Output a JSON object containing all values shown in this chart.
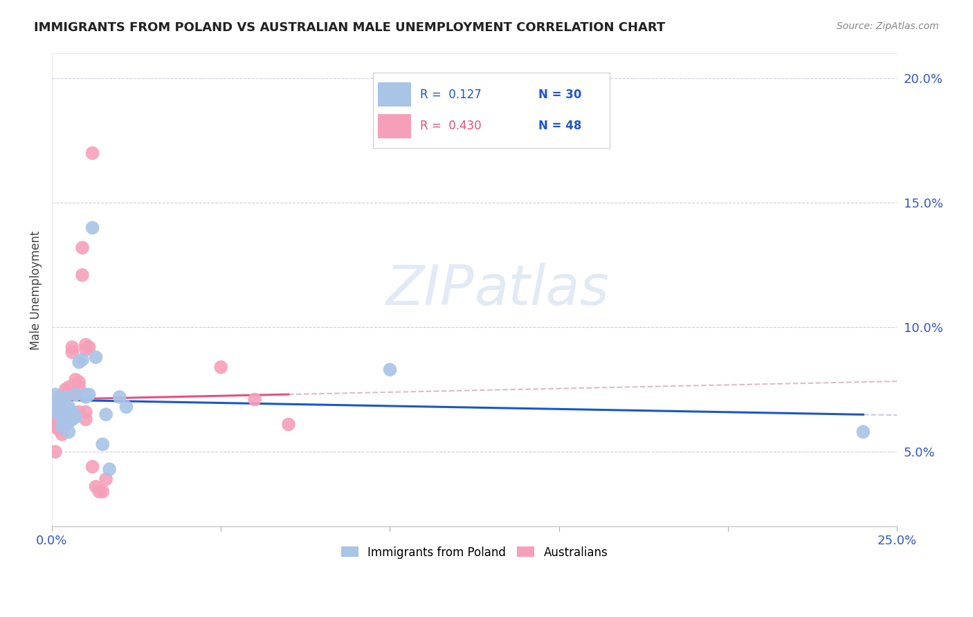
{
  "title": "IMMIGRANTS FROM POLAND VS AUSTRALIAN MALE UNEMPLOYMENT CORRELATION CHART",
  "source": "Source: ZipAtlas.com",
  "ylabel": "Male Unemployment",
  "right_yticks": [
    0.05,
    0.1,
    0.15,
    0.2
  ],
  "right_yticklabels": [
    "5.0%",
    "10.0%",
    "15.0%",
    "20.0%"
  ],
  "poland_color": "#a8c4e6",
  "australia_color": "#f5a0b8",
  "poland_line_color": "#1a56cc",
  "australia_line_color": "#e8507a",
  "poland_ext_color": "#c8c8dd",
  "australia_ext_color": "#ddbbc8",
  "watermark_color": "#ccd8ee",
  "xmin": 0.0,
  "xmax": 0.25,
  "ymin": 0.02,
  "ymax": 0.21,
  "poland_r": "0.127",
  "poland_n": "30",
  "australia_r": "0.430",
  "australia_n": "48",
  "poland_scatter_x": [
    0.001,
    0.001,
    0.002,
    0.002,
    0.003,
    0.003,
    0.004,
    0.004,
    0.004,
    0.005,
    0.005,
    0.005,
    0.006,
    0.006,
    0.007,
    0.007,
    0.008,
    0.009,
    0.01,
    0.01,
    0.011,
    0.012,
    0.013,
    0.015,
    0.016,
    0.017,
    0.02,
    0.022,
    0.1,
    0.24
  ],
  "poland_scatter_y": [
    0.067,
    0.073,
    0.065,
    0.07,
    0.06,
    0.064,
    0.072,
    0.065,
    0.061,
    0.062,
    0.058,
    0.068,
    0.063,
    0.066,
    0.073,
    0.064,
    0.086,
    0.087,
    0.072,
    0.073,
    0.073,
    0.14,
    0.088,
    0.053,
    0.065,
    0.043,
    0.072,
    0.068,
    0.083,
    0.058
  ],
  "australia_scatter_x": [
    0.001,
    0.001,
    0.001,
    0.001,
    0.001,
    0.001,
    0.001,
    0.002,
    0.002,
    0.002,
    0.002,
    0.002,
    0.002,
    0.003,
    0.003,
    0.003,
    0.003,
    0.004,
    0.004,
    0.004,
    0.004,
    0.004,
    0.005,
    0.005,
    0.005,
    0.006,
    0.006,
    0.007,
    0.007,
    0.008,
    0.008,
    0.008,
    0.009,
    0.009,
    0.01,
    0.01,
    0.01,
    0.01,
    0.011,
    0.012,
    0.012,
    0.013,
    0.014,
    0.015,
    0.016,
    0.05,
    0.06,
    0.07
  ],
  "australia_scatter_y": [
    0.063,
    0.065,
    0.066,
    0.067,
    0.068,
    0.06,
    0.05,
    0.059,
    0.061,
    0.063,
    0.066,
    0.067,
    0.072,
    0.057,
    0.059,
    0.061,
    0.066,
    0.068,
    0.064,
    0.072,
    0.073,
    0.075,
    0.076,
    0.073,
    0.066,
    0.09,
    0.092,
    0.073,
    0.079,
    0.076,
    0.078,
    0.066,
    0.121,
    0.132,
    0.091,
    0.093,
    0.066,
    0.063,
    0.092,
    0.17,
    0.044,
    0.036,
    0.034,
    0.034,
    0.039,
    0.084,
    0.071,
    0.061
  ]
}
